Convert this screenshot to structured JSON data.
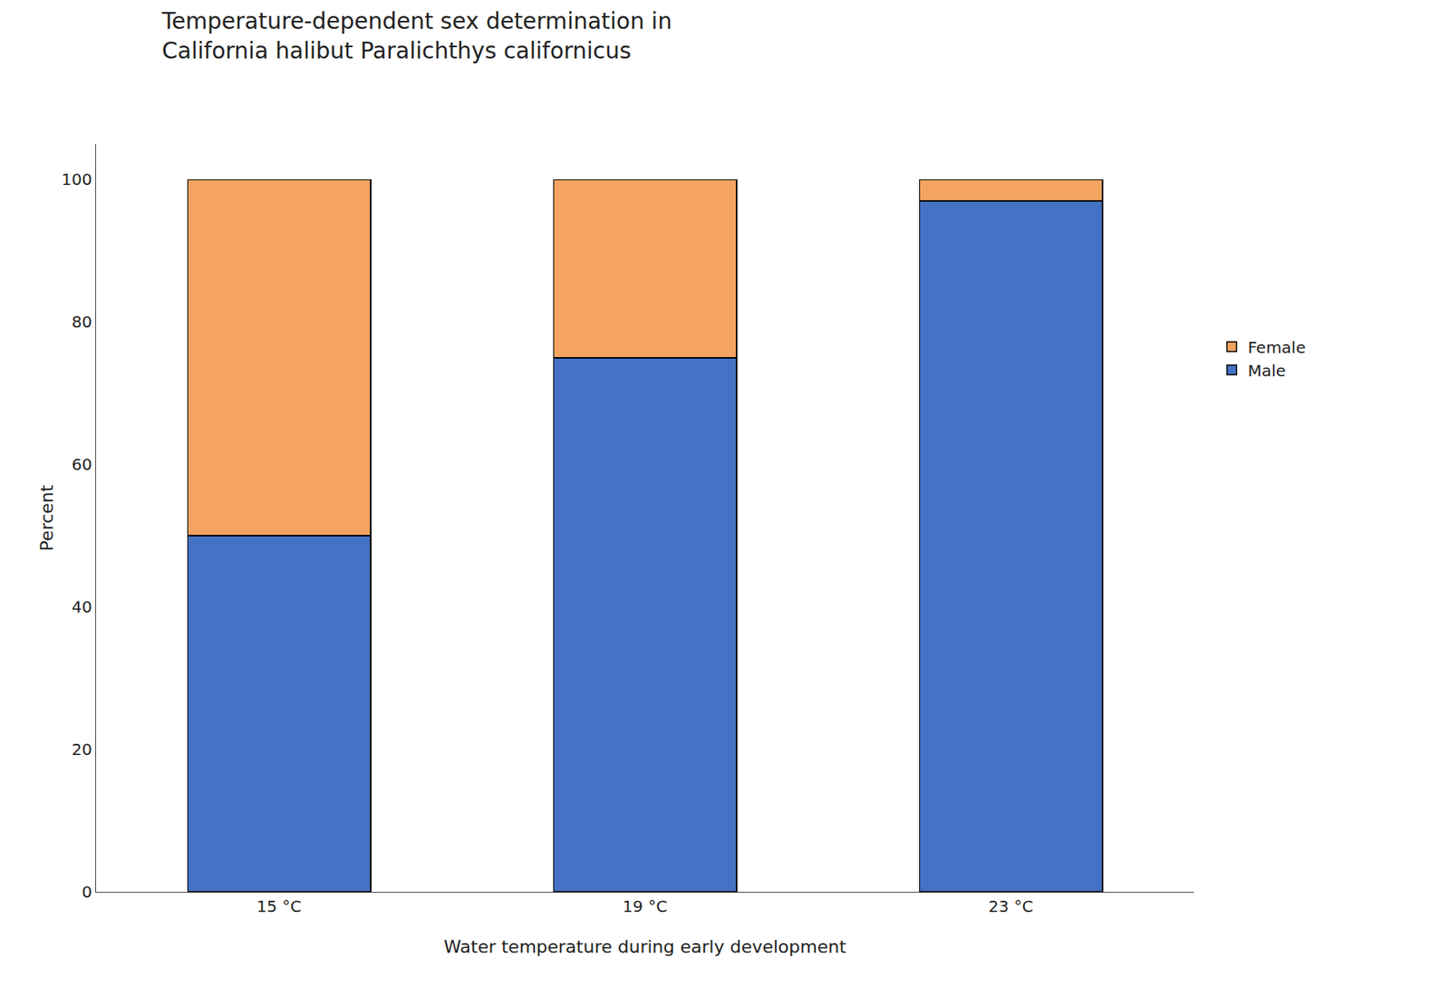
{
  "chart_data": {
    "type": "bar",
    "title": "Temperature-dependent sex determination in\nCalifornia halibut Paralichthys californicus",
    "xlabel": "Water temperature during early development",
    "ylabel": "Percent",
    "categories": [
      "15 °C",
      "19 °C",
      "23 °C"
    ],
    "series": [
      {
        "name": "Male",
        "color": "#4472C4",
        "values": [
          50,
          75,
          97
        ]
      },
      {
        "name": "Female",
        "color": "#F4A460",
        "values": [
          50,
          25,
          3
        ]
      }
    ],
    "stacked": true,
    "ylim": [
      0,
      105
    ],
    "yticks": [
      0,
      20,
      40,
      60,
      80,
      100
    ],
    "grid": false,
    "legend": "right"
  }
}
